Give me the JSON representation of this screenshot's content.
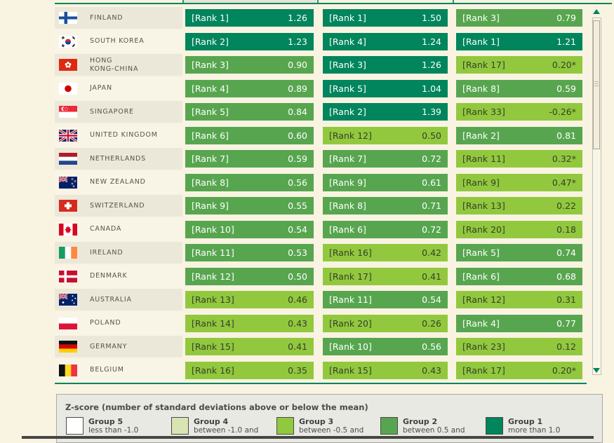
{
  "colors": {
    "group1": "#00855C",
    "group2": "#57A64F",
    "group3": "#92C83E",
    "group4": "#D8E4B2",
    "group5": "#FFFFFF",
    "accent_border": "#00855C"
  },
  "table": {
    "rows": [
      {
        "country": {
          "name": "FINLAND",
          "flag": "fi"
        },
        "cells": [
          {
            "rank": "[Rank 1]",
            "value": "1.26",
            "group": 1
          },
          {
            "rank": "[Rank 1]",
            "value": "1.50",
            "group": 1
          },
          {
            "rank": "[Rank 3]",
            "value": "0.79",
            "group": 2
          }
        ]
      },
      {
        "country": {
          "name": "SOUTH KOREA",
          "flag": "kr"
        },
        "cells": [
          {
            "rank": "[Rank 2]",
            "value": "1.23",
            "group": 1
          },
          {
            "rank": "[Rank 4]",
            "value": "1.24",
            "group": 1
          },
          {
            "rank": "[Rank 1]",
            "value": "1.21",
            "group": 1
          }
        ]
      },
      {
        "country": {
          "name": "HONG\nKONG-CHINA",
          "flag": "hk"
        },
        "cells": [
          {
            "rank": "[Rank 3]",
            "value": "0.90",
            "group": 2
          },
          {
            "rank": "[Rank 3]",
            "value": "1.26",
            "group": 1
          },
          {
            "rank": "[Rank 17]",
            "value": "0.20*",
            "group": 3
          }
        ]
      },
      {
        "country": {
          "name": "JAPAN",
          "flag": "jp"
        },
        "cells": [
          {
            "rank": "[Rank 4]",
            "value": "0.89",
            "group": 2
          },
          {
            "rank": "[Rank 5]",
            "value": "1.04",
            "group": 1
          },
          {
            "rank": "[Rank 8]",
            "value": "0.59",
            "group": 2
          }
        ]
      },
      {
        "country": {
          "name": "SINGAPORE",
          "flag": "sg"
        },
        "cells": [
          {
            "rank": "[Rank 5]",
            "value": "0.84",
            "group": 2
          },
          {
            "rank": "[Rank 2]",
            "value": "1.39",
            "group": 1
          },
          {
            "rank": "[Rank 33]",
            "value": "-0.26*",
            "group": 3
          }
        ]
      },
      {
        "country": {
          "name": "UNITED KINGDOM",
          "flag": "gb"
        },
        "cells": [
          {
            "rank": "[Rank 6]",
            "value": "0.60",
            "group": 2
          },
          {
            "rank": "[Rank 12]",
            "value": "0.50",
            "group": 3
          },
          {
            "rank": "[Rank 2]",
            "value": "0.81",
            "group": 2
          }
        ]
      },
      {
        "country": {
          "name": "NETHERLANDS",
          "flag": "nl"
        },
        "cells": [
          {
            "rank": "[Rank 7]",
            "value": "0.59",
            "group": 2
          },
          {
            "rank": "[Rank 7]",
            "value": "0.72",
            "group": 2
          },
          {
            "rank": "[Rank 11]",
            "value": "0.32*",
            "group": 3
          }
        ]
      },
      {
        "country": {
          "name": "NEW ZEALAND",
          "flag": "nz"
        },
        "cells": [
          {
            "rank": "[Rank 8]",
            "value": "0.56",
            "group": 2
          },
          {
            "rank": "[Rank 9]",
            "value": "0.61",
            "group": 2
          },
          {
            "rank": "[Rank 9]",
            "value": "0.47*",
            "group": 3
          }
        ]
      },
      {
        "country": {
          "name": "SWITZERLAND",
          "flag": "ch"
        },
        "cells": [
          {
            "rank": "[Rank 9]",
            "value": "0.55",
            "group": 2
          },
          {
            "rank": "[Rank 8]",
            "value": "0.71",
            "group": 2
          },
          {
            "rank": "[Rank 13]",
            "value": "0.22",
            "group": 3
          }
        ]
      },
      {
        "country": {
          "name": "CANADA",
          "flag": "ca"
        },
        "cells": [
          {
            "rank": "[Rank 10]",
            "value": "0.54",
            "group": 2
          },
          {
            "rank": "[Rank 6]",
            "value": "0.72",
            "group": 2
          },
          {
            "rank": "[Rank 20]",
            "value": "0.18",
            "group": 3
          }
        ]
      },
      {
        "country": {
          "name": "IRELAND",
          "flag": "ie"
        },
        "cells": [
          {
            "rank": "[Rank 11]",
            "value": "0.53",
            "group": 2
          },
          {
            "rank": "[Rank 16]",
            "value": "0.42",
            "group": 3
          },
          {
            "rank": "[Rank 5]",
            "value": "0.74",
            "group": 2
          }
        ]
      },
      {
        "country": {
          "name": "DENMARK",
          "flag": "dk"
        },
        "cells": [
          {
            "rank": "[Rank 12]",
            "value": "0.50",
            "group": 2
          },
          {
            "rank": "[Rank 17]",
            "value": "0.41",
            "group": 3
          },
          {
            "rank": "[Rank 6]",
            "value": "0.68",
            "group": 2
          }
        ]
      },
      {
        "country": {
          "name": "AUSTRALIA",
          "flag": "au"
        },
        "cells": [
          {
            "rank": "[Rank 13]",
            "value": "0.46",
            "group": 3
          },
          {
            "rank": "[Rank 11]",
            "value": "0.54",
            "group": 2
          },
          {
            "rank": "[Rank 12]",
            "value": "0.31",
            "group": 3
          }
        ]
      },
      {
        "country": {
          "name": "POLAND",
          "flag": "pl"
        },
        "cells": [
          {
            "rank": "[Rank 14]",
            "value": "0.43",
            "group": 3
          },
          {
            "rank": "[Rank 20]",
            "value": "0.26",
            "group": 3
          },
          {
            "rank": "[Rank 4]",
            "value": "0.77",
            "group": 2
          }
        ]
      },
      {
        "country": {
          "name": "GERMANY",
          "flag": "de"
        },
        "cells": [
          {
            "rank": "[Rank 15]",
            "value": "0.41",
            "group": 3
          },
          {
            "rank": "[Rank 10]",
            "value": "0.56",
            "group": 2
          },
          {
            "rank": "[Rank 23]",
            "value": "0.12",
            "group": 3
          }
        ]
      },
      {
        "country": {
          "name": "BELGIUM",
          "flag": "be"
        },
        "cells": [
          {
            "rank": "[Rank 16]",
            "value": "0.35",
            "group": 3
          },
          {
            "rank": "[Rank 15]",
            "value": "0.43",
            "group": 3
          },
          {
            "rank": "[Rank 17]",
            "value": "0.20*",
            "group": 3
          }
        ]
      }
    ]
  },
  "legend": {
    "title": "Z-score (number of standard deviations above or below the mean)",
    "groups": [
      {
        "name": "Group 5",
        "desc": "less than -1.0",
        "group": 5
      },
      {
        "name": "Group 4",
        "desc": "between -1.0 and",
        "group": 4
      },
      {
        "name": "Group 3",
        "desc": "between -0.5 and",
        "group": 3
      },
      {
        "name": "Group 2",
        "desc": "between 0.5 and",
        "group": 2
      },
      {
        "name": "Group 1",
        "desc": "more than 1.0",
        "group": 1
      }
    ]
  }
}
